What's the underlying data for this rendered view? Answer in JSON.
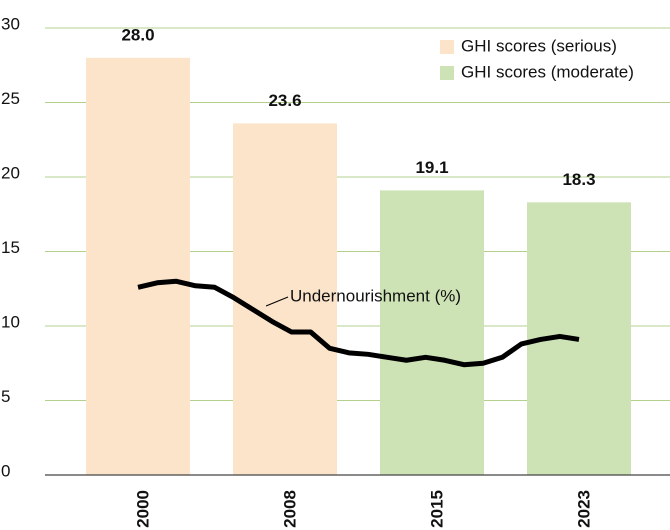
{
  "chart_data": {
    "type": "bar",
    "categories": [
      "2000",
      "2008",
      "2015",
      "2023"
    ],
    "series": [
      {
        "name": "GHI scores (serious)",
        "color": "#fce4cb",
        "values": [
          28.0,
          23.6,
          null,
          null
        ],
        "value_labels": [
          "28.0",
          "23.6",
          null,
          null
        ]
      },
      {
        "name": "GHI scores (moderate)",
        "color": "#cde3b5",
        "values": [
          null,
          null,
          19.1,
          18.3
        ]
      }
    ],
    "line": {
      "type": "line",
      "name": "Undernourishment (%)",
      "color": "#000000",
      "x": [
        2000,
        2001,
        2002,
        2003,
        2004,
        2005,
        2006,
        2007,
        2008,
        2009,
        2010,
        2011,
        2012,
        2013,
        2014,
        2015,
        2016,
        2017,
        2018,
        2019,
        2020,
        2021,
        2022,
        2023
      ],
      "values": [
        12.6,
        12.9,
        13.0,
        12.7,
        12.6,
        11.9,
        11.1,
        10.3,
        9.6,
        9.6,
        8.5,
        8.2,
        8.1,
        7.9,
        7.7,
        7.9,
        7.7,
        7.4,
        7.5,
        7.9,
        8.8,
        9.1,
        9.3,
        9.1
      ]
    },
    "ylim": [
      0,
      30
    ],
    "yticks": [
      0,
      5,
      10,
      15,
      20,
      25,
      30
    ],
    "grid": true,
    "legend": "upper right"
  }
}
